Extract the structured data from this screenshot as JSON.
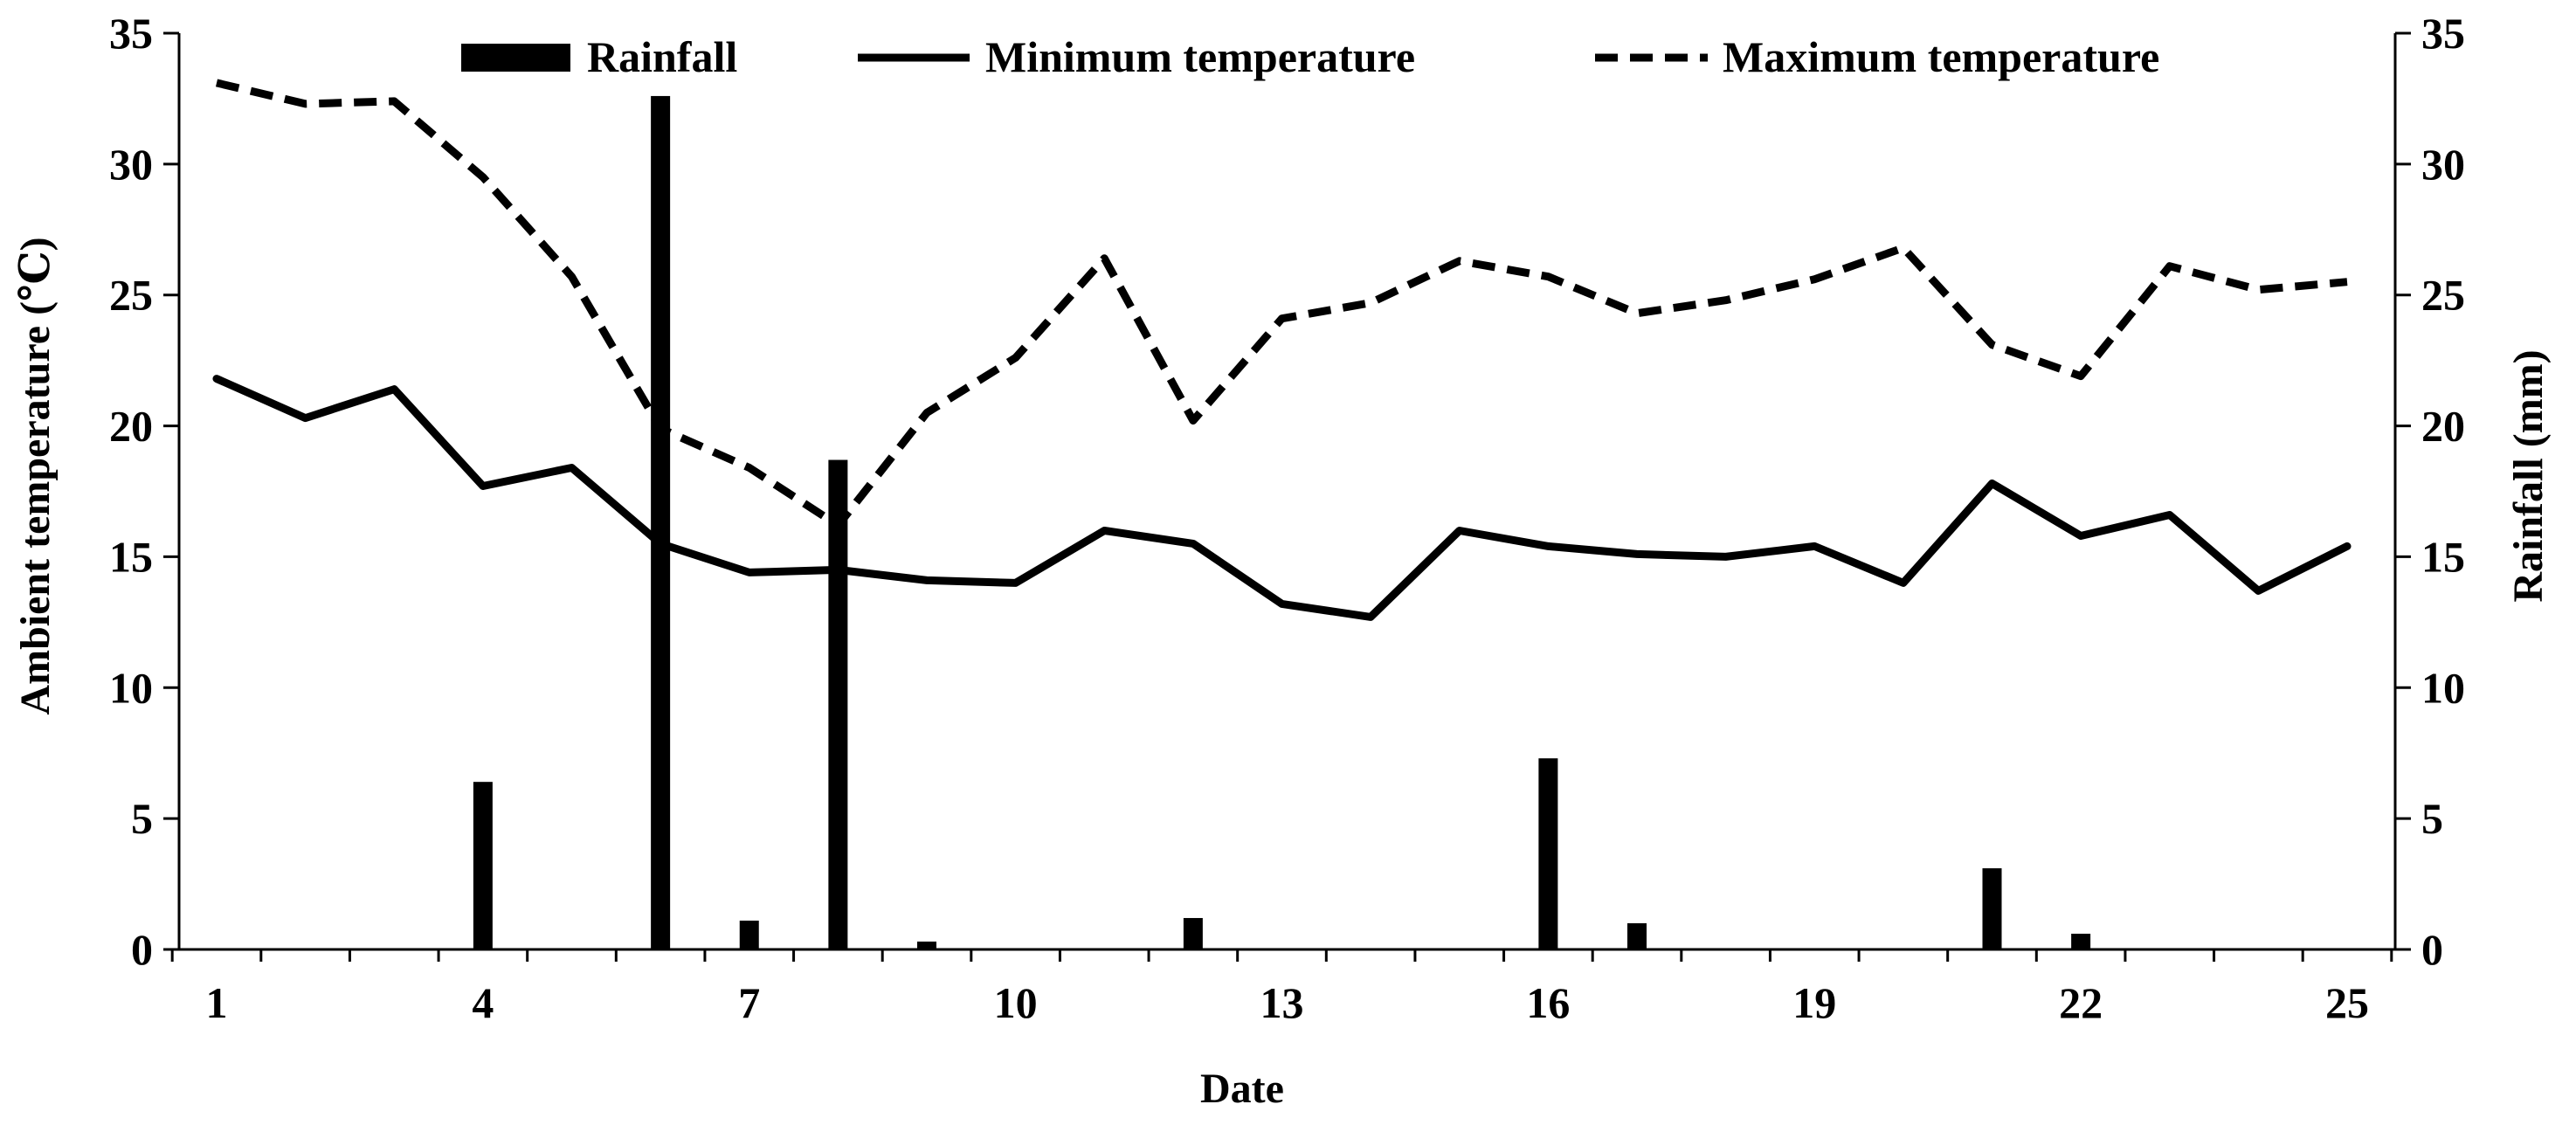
{
  "chart_data": {
    "type": "bar+line",
    "x": [
      1,
      2,
      3,
      4,
      5,
      6,
      7,
      8,
      9,
      10,
      11,
      12,
      13,
      14,
      15,
      16,
      17,
      18,
      19,
      20,
      21,
      22,
      23,
      24,
      25
    ],
    "xticks": [
      1,
      4,
      7,
      10,
      13,
      16,
      19,
      22,
      25
    ],
    "xlabel": "Date",
    "ylabel_left": "Ambient  temperature  (℃)",
    "ylabel_right": "Rainfall (mm)",
    "ylim_left": [
      0,
      35
    ],
    "ylim_right": [
      0,
      35
    ],
    "yticks": [
      0,
      5,
      10,
      15,
      20,
      25,
      30,
      35
    ],
    "series": [
      {
        "name": "Rainfall",
        "kind": "bar",
        "axis": "right",
        "values": [
          0,
          0,
          0,
          6.4,
          0,
          32.6,
          1.1,
          18.7,
          0.3,
          0,
          0,
          1.2,
          0,
          0,
          0,
          7.3,
          1.0,
          0,
          0,
          0,
          3.1,
          0.6,
          0,
          0,
          0
        ]
      },
      {
        "name": "Minimum temperature",
        "kind": "line",
        "style": "solid",
        "axis": "left",
        "values": [
          21.8,
          20.3,
          21.4,
          17.7,
          18.4,
          15.5,
          14.4,
          14.5,
          14.1,
          14.0,
          16.0,
          15.5,
          13.2,
          12.7,
          16.0,
          15.4,
          15.1,
          15.0,
          15.4,
          14.0,
          17.8,
          15.8,
          16.6,
          13.7,
          15.4
        ]
      },
      {
        "name": "Maximum temperature",
        "kind": "line",
        "style": "dashed",
        "axis": "left",
        "values": [
          33.1,
          32.3,
          32.4,
          29.5,
          25.7,
          19.9,
          18.4,
          16.2,
          20.5,
          22.6,
          26.4,
          20.2,
          24.1,
          24.7,
          26.3,
          25.7,
          24.3,
          24.8,
          25.6,
          26.8,
          23.1,
          21.9,
          26.1,
          25.2,
          25.5
        ]
      }
    ],
    "legend_position": "top"
  },
  "colors": {
    "ink": "#000000",
    "background": "#ffffff"
  }
}
